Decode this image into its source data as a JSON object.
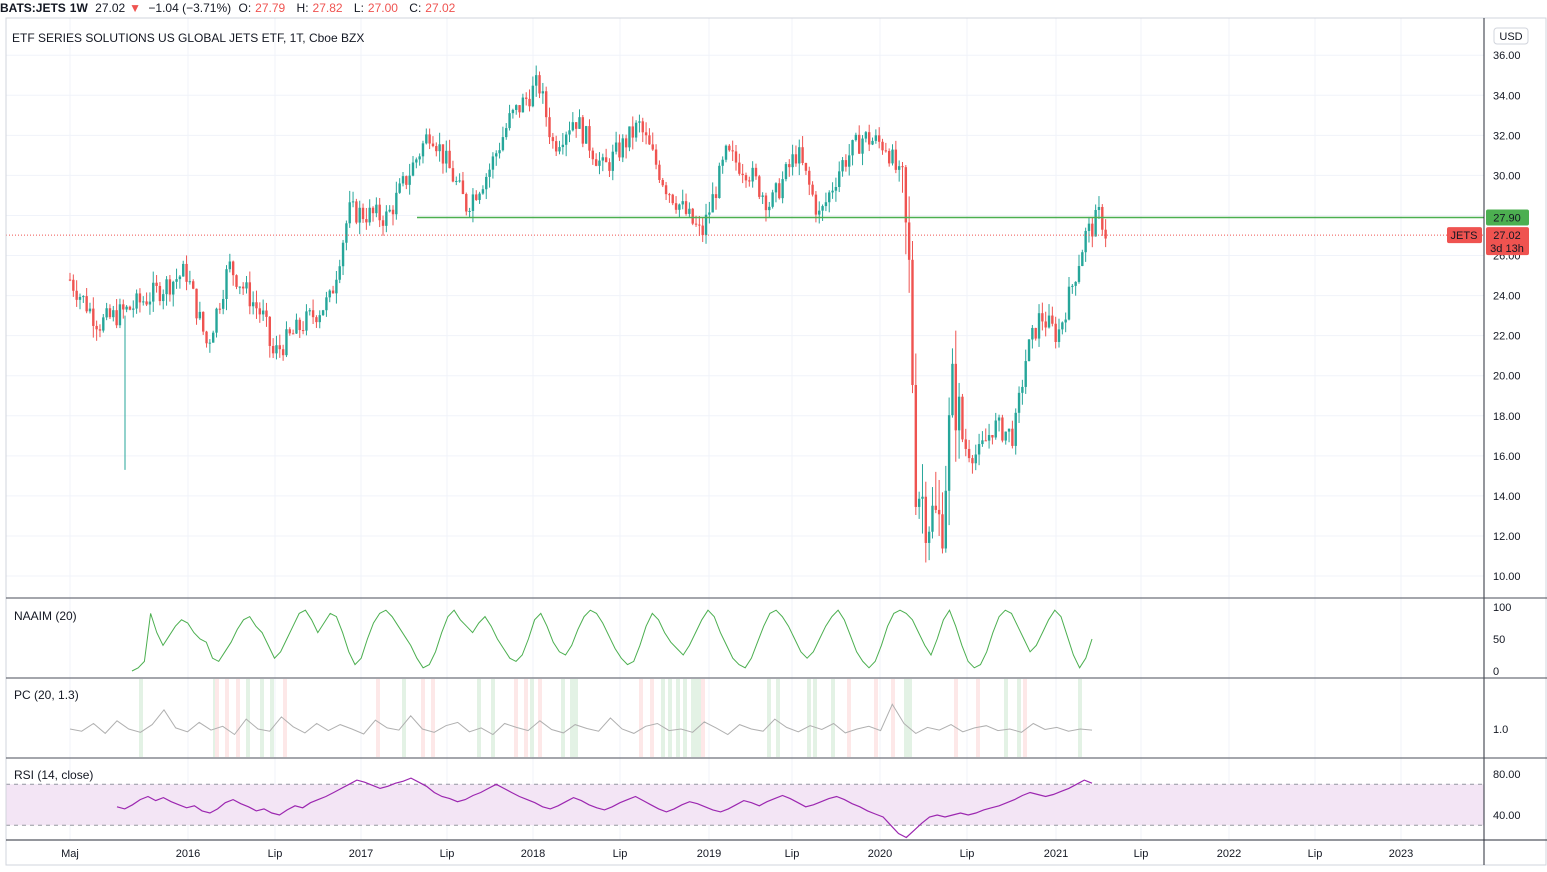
{
  "header": {
    "symbol": "BATS:JETS",
    "interval": "1W",
    "last": "27.02",
    "change": "−1.04 (−3.71%)",
    "o_label": "O:",
    "o_value": "27.79",
    "h_label": "H:",
    "h_value": "27.82",
    "l_label": "L:",
    "l_value": "27.00",
    "c_label": "C:",
    "c_value": "27.02"
  },
  "main_title": "ETF SERIES SOLUTIONS US GLOBAL JETS ETF, 1T, Cboe BZX",
  "currency": "USD",
  "price_axis_ticks": [
    "36.00",
    "34.00",
    "32.00",
    "30.00",
    "28.00",
    "26.00",
    "24.00",
    "22.00",
    "20.00",
    "18.00",
    "16.00",
    "14.00",
    "12.00",
    "10.00"
  ],
  "time_axis_labels": [
    "Maj",
    "2016",
    "Lip",
    "2017",
    "Lip",
    "2018",
    "Lip",
    "2019",
    "Lip",
    "2020",
    "Lip",
    "2021",
    "Lip",
    "2022",
    "Lip",
    "2023"
  ],
  "horizontal_line": {
    "value": "27.90",
    "color": "#4caf50"
  },
  "last_price_tag": {
    "symbol": "JETS",
    "value": "27.02",
    "countdown": "3d 13h",
    "color": "#ef5350"
  },
  "colors": {
    "up": "#26a69a",
    "down": "#ef5350",
    "naaim": "#4caf50",
    "pc": "#b0b0b0",
    "rsi": "#9c27b0",
    "rsi_band": "#f3e5f5"
  },
  "panes": {
    "naaim": {
      "title": "NAAIM (20)",
      "ticks": [
        "100",
        "50",
        "0"
      ]
    },
    "pc": {
      "title": "PC (20, 1.3)",
      "ticks": [
        "1.0"
      ]
    },
    "rsi": {
      "title": "RSI (14, close)",
      "ticks": [
        "80.00",
        "40.00"
      ]
    }
  },
  "chart_data": [
    {
      "type": "candlestick",
      "title": "ETF SERIES SOLUTIONS US GLOBAL JETS ETF, 1T, Cboe BZX",
      "ylim": [
        9,
        37
      ],
      "x_start": "2015-05-01",
      "x_end": "2021-05-20",
      "key_points": [
        [
          "2015-05-01",
          24.8
        ],
        [
          "2015-07-01",
          22.6
        ],
        [
          "2015-09-01",
          23.3
        ],
        [
          "2015-11-01",
          24.2
        ],
        [
          "2016-01-01",
          25.2
        ],
        [
          "2016-02-15",
          21.5
        ],
        [
          "2016-04-01",
          25.5
        ],
        [
          "2016-06-15",
          22.8
        ],
        [
          "2016-07-01",
          21.0
        ],
        [
          "2016-09-01",
          22.5
        ],
        [
          "2016-11-01",
          23.8
        ],
        [
          "2016-12-10",
          28.2
        ],
        [
          "2017-03-01",
          27.9
        ],
        [
          "2017-06-01",
          32.3
        ],
        [
          "2017-08-15",
          28.5
        ],
        [
          "2017-10-01",
          30.2
        ],
        [
          "2017-11-15",
          32.8
        ],
        [
          "2018-01-15",
          34.6
        ],
        [
          "2018-02-15",
          31.5
        ],
        [
          "2018-04-01",
          32.9
        ],
        [
          "2018-06-01",
          30.3
        ],
        [
          "2018-08-15",
          32.5
        ],
        [
          "2018-10-10",
          29.5
        ],
        [
          "2018-12-25",
          27.0
        ],
        [
          "2019-02-15",
          31.0
        ],
        [
          "2019-04-01",
          30.3
        ],
        [
          "2019-05-20",
          28.5
        ],
        [
          "2019-07-15",
          31.2
        ],
        [
          "2019-09-01",
          27.9
        ],
        [
          "2019-10-15",
          30.5
        ],
        [
          "2019-12-01",
          31.9
        ],
        [
          "2020-01-20",
          31.5
        ],
        [
          "2020-02-20",
          29.6
        ],
        [
          "2020-03-10",
          24.5
        ],
        [
          "2020-03-20",
          15.0
        ],
        [
          "2020-04-15",
          13.2
        ],
        [
          "2020-05-15",
          12.5
        ],
        [
          "2020-06-08",
          19.5
        ],
        [
          "2020-07-01",
          16.5
        ],
        [
          "2020-08-01",
          16.0
        ],
        [
          "2020-09-01",
          17.5
        ],
        [
          "2020-10-15",
          17.0
        ],
        [
          "2020-11-10",
          21.0
        ],
        [
          "2020-12-10",
          23.0
        ],
        [
          "2021-01-15",
          22.0
        ],
        [
          "2021-02-15",
          24.5
        ],
        [
          "2021-03-15",
          27.0
        ],
        [
          "2021-04-01",
          27.5
        ],
        [
          "2021-04-15",
          28.1
        ],
        [
          "2021-04-28",
          27.02
        ]
      ],
      "last_close": 27.02,
      "reference_line": 27.9
    },
    {
      "type": "line",
      "name": "NAAIM (20)",
      "ylim": [
        0,
        100
      ],
      "values": [
        0,
        5,
        15,
        90,
        60,
        40,
        55,
        70,
        80,
        75,
        60,
        50,
        45,
        20,
        15,
        30,
        45,
        65,
        80,
        85,
        70,
        60,
        40,
        20,
        30,
        50,
        70,
        90,
        95,
        80,
        60,
        75,
        90,
        85,
        60,
        30,
        10,
        20,
        50,
        75,
        90,
        95,
        85,
        70,
        55,
        40,
        20,
        5,
        10,
        30,
        60,
        85,
        95,
        80,
        70,
        60,
        75,
        85,
        70,
        50,
        35,
        20,
        15,
        25,
        50,
        80,
        90,
        70,
        45,
        30,
        25,
        40,
        65,
        85,
        95,
        90,
        75,
        55,
        35,
        20,
        10,
        15,
        40,
        70,
        90,
        80,
        60,
        45,
        35,
        25,
        40,
        60,
        80,
        95,
        85,
        60,
        40,
        20,
        10,
        5,
        20,
        45,
        70,
        90,
        95,
        85,
        70,
        50,
        30,
        20,
        30,
        50,
        70,
        85,
        95,
        80,
        55,
        30,
        15,
        5,
        15,
        40,
        70,
        90,
        95,
        90,
        80,
        60,
        40,
        25,
        50,
        80,
        95,
        70,
        40,
        15,
        5,
        10,
        30,
        60,
        85,
        95,
        90,
        70,
        50,
        30,
        40,
        60,
        80,
        95,
        85,
        55,
        25,
        5,
        20,
        50
      ]
    },
    {
      "type": "line",
      "name": "PC (20, 1.3)",
      "values": [
        1.0,
        0.96,
        1.1,
        0.92,
        1.15,
        1.0,
        0.94,
        1.08,
        1.35,
        1.02,
        0.95,
        1.12,
        0.98,
        1.05,
        0.9,
        1.18,
        1.0,
        0.96,
        1.22,
        1.04,
        0.93,
        1.1,
        0.97,
        1.08,
        1.0,
        0.91,
        1.16,
        1.02,
        0.98,
        1.24,
        1.0,
        0.94,
        1.06,
        1.12,
        0.95,
        1.02,
        0.9,
        1.1,
        1.03,
        0.97,
        1.15,
        0.99,
        0.93,
        1.08,
        1.01,
        0.96,
        1.2,
        1.0,
        0.92,
        1.05,
        1.1,
        0.97,
        1.0,
        0.94,
        1.13,
        1.02,
        0.9,
        1.08,
        1.0,
        0.96,
        1.18,
        1.03,
        0.95,
        1.06,
        0.99,
        1.1,
        0.93,
        1.0,
        1.05,
        0.97,
        1.45,
        1.1,
        0.92,
        1.03,
        0.98,
        1.08,
        0.95,
        1.02,
        1.06,
        0.97,
        1.0,
        0.94,
        1.1,
        0.99,
        1.03,
        0.96,
        1.0,
        0.98
      ]
    },
    {
      "type": "line",
      "name": "RSI (14, close)",
      "ylim": [
        15,
        85
      ],
      "bands": [
        70,
        30
      ],
      "values": [
        48,
        46,
        50,
        55,
        58,
        54,
        57,
        53,
        50,
        47,
        49,
        44,
        42,
        46,
        52,
        55,
        51,
        48,
        44,
        46,
        42,
        40,
        45,
        49,
        47,
        52,
        55,
        58,
        62,
        66,
        70,
        74,
        72,
        69,
        66,
        68,
        71,
        73,
        76,
        72,
        68,
        62,
        58,
        56,
        53,
        55,
        59,
        62,
        66,
        70,
        66,
        62,
        58,
        55,
        52,
        48,
        46,
        49,
        53,
        57,
        54,
        50,
        47,
        45,
        48,
        52,
        55,
        58,
        54,
        50,
        46,
        43,
        46,
        50,
        53,
        51,
        48,
        45,
        43,
        46,
        50,
        54,
        52,
        49,
        53,
        56,
        59,
        56,
        52,
        48,
        50,
        53,
        56,
        58,
        55,
        51,
        48,
        44,
        41,
        38,
        30,
        22,
        18,
        25,
        32,
        38,
        40,
        38,
        40,
        42,
        40,
        42,
        45,
        47,
        49,
        52,
        55,
        59,
        62,
        60,
        58,
        60,
        63,
        66,
        70,
        74,
        71
      ]
    }
  ]
}
